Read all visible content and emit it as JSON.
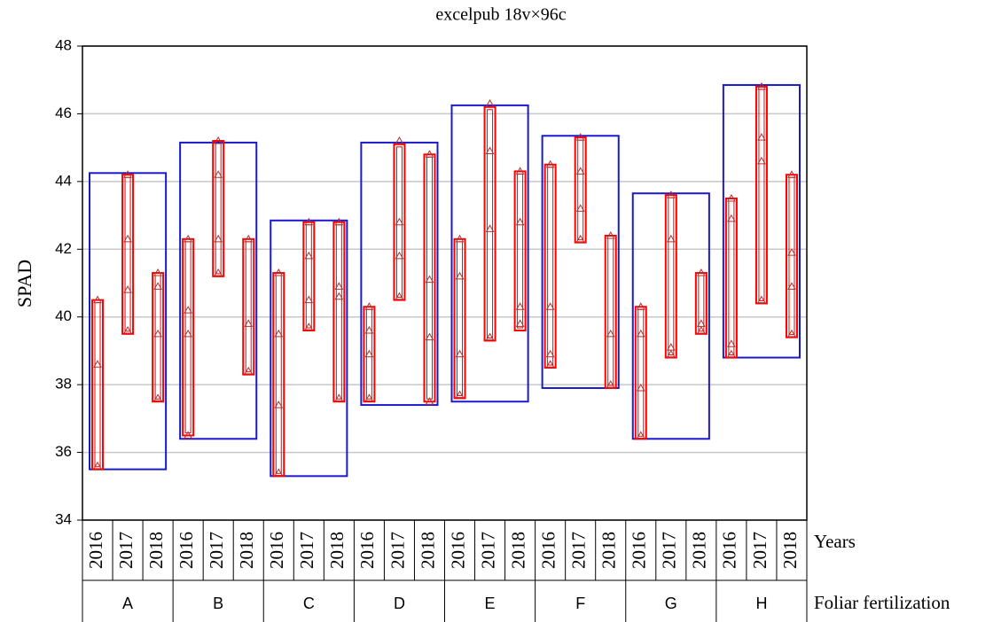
{
  "chart_data": {
    "type": "range",
    "title": "excelpub 18v×96c",
    "y_label": "SPAD",
    "x_level_labels": [
      "Years",
      "Foliar fertilization"
    ],
    "ylim": [
      34,
      48
    ],
    "yticks": [
      34,
      36,
      38,
      40,
      42,
      44,
      46,
      48
    ],
    "grid": true,
    "group_color": "#1a1acc",
    "year_color": "#ff0000",
    "groups": [
      {
        "name": "A",
        "box": [
          35.5,
          44.25
        ],
        "years": [
          {
            "name": "2016",
            "range": [
              35.5,
              40.5
            ],
            "points": [
              40.5,
              38.6,
              35.6
            ]
          },
          {
            "name": "2017",
            "range": [
              39.5,
              44.2
            ],
            "points": [
              44.2,
              42.3,
              40.8,
              39.6
            ]
          },
          {
            "name": "2018",
            "range": [
              37.5,
              41.3
            ],
            "points": [
              41.3,
              40.9,
              39.5,
              37.6
            ]
          }
        ]
      },
      {
        "name": "B",
        "box": [
          36.4,
          45.15
        ],
        "years": [
          {
            "name": "2016",
            "range": [
              36.5,
              42.3
            ],
            "points": [
              42.3,
              40.2,
              39.5,
              36.5
            ]
          },
          {
            "name": "2017",
            "range": [
              41.2,
              45.2
            ],
            "points": [
              45.2,
              44.2,
              42.3,
              41.3
            ]
          },
          {
            "name": "2018",
            "range": [
              38.3,
              42.3
            ],
            "points": [
              42.3,
              39.8,
              38.4
            ]
          }
        ]
      },
      {
        "name": "C",
        "box": [
          35.3,
          42.85
        ],
        "years": [
          {
            "name": "2016",
            "range": [
              35.3,
              41.3
            ],
            "points": [
              41.3,
              39.5,
              37.4,
              35.4
            ]
          },
          {
            "name": "2017",
            "range": [
              39.6,
              42.8
            ],
            "points": [
              42.8,
              41.8,
              40.5,
              39.7
            ]
          },
          {
            "name": "2018",
            "range": [
              37.5,
              42.8
            ],
            "points": [
              42.8,
              40.9,
              40.6,
              37.6
            ]
          }
        ]
      },
      {
        "name": "D",
        "box": [
          37.4,
          45.15
        ],
        "years": [
          {
            "name": "2016",
            "range": [
              37.5,
              40.3
            ],
            "points": [
              40.3,
              39.6,
              38.9,
              37.6
            ]
          },
          {
            "name": "2017",
            "range": [
              40.5,
              45.1
            ],
            "points": [
              45.2,
              42.8,
              41.8,
              40.6
            ]
          },
          {
            "name": "2018",
            "range": [
              37.5,
              44.8
            ],
            "points": [
              44.8,
              41.1,
              39.4,
              37.5
            ]
          }
        ]
      },
      {
        "name": "E",
        "box": [
          37.5,
          46.25
        ],
        "years": [
          {
            "name": "2016",
            "range": [
              37.6,
              42.3
            ],
            "points": [
              42.3,
              41.2,
              38.9,
              37.7
            ]
          },
          {
            "name": "2017",
            "range": [
              39.3,
              46.2
            ],
            "points": [
              46.3,
              44.9,
              42.6,
              39.4
            ]
          },
          {
            "name": "2018",
            "range": [
              39.6,
              44.3
            ],
            "points": [
              44.3,
              42.8,
              40.3,
              39.8
            ]
          }
        ]
      },
      {
        "name": "F",
        "box": [
          37.9,
          45.35
        ],
        "years": [
          {
            "name": "2016",
            "range": [
              38.5,
              44.5
            ],
            "points": [
              44.5,
              40.3,
              38.9,
              38.6
            ]
          },
          {
            "name": "2017",
            "range": [
              42.2,
              45.3
            ],
            "points": [
              45.3,
              44.3,
              43.2,
              42.3
            ]
          },
          {
            "name": "2018",
            "range": [
              37.9,
              42.4
            ],
            "points": [
              42.4,
              39.5,
              38.0
            ]
          }
        ]
      },
      {
        "name": "G",
        "box": [
          36.4,
          43.65
        ],
        "years": [
          {
            "name": "2016",
            "range": [
              36.4,
              40.3
            ],
            "points": [
              40.3,
              39.5,
              37.9,
              36.5
            ]
          },
          {
            "name": "2017",
            "range": [
              38.8,
              43.6
            ],
            "points": [
              43.6,
              42.3,
              39.1,
              38.9
            ]
          },
          {
            "name": "2018",
            "range": [
              39.5,
              41.3
            ],
            "points": [
              41.3,
              39.8,
              39.6
            ]
          }
        ]
      },
      {
        "name": "H",
        "box": [
          38.8,
          46.85
        ],
        "years": [
          {
            "name": "2016",
            "range": [
              38.8,
              43.5
            ],
            "points": [
              43.5,
              42.9,
              39.2,
              38.9
            ]
          },
          {
            "name": "2017",
            "range": [
              40.4,
              46.8
            ],
            "points": [
              46.8,
              45.3,
              44.6,
              40.5
            ]
          },
          {
            "name": "2018",
            "range": [
              39.4,
              44.2
            ],
            "points": [
              44.2,
              41.9,
              40.9,
              39.5
            ]
          }
        ]
      }
    ]
  }
}
